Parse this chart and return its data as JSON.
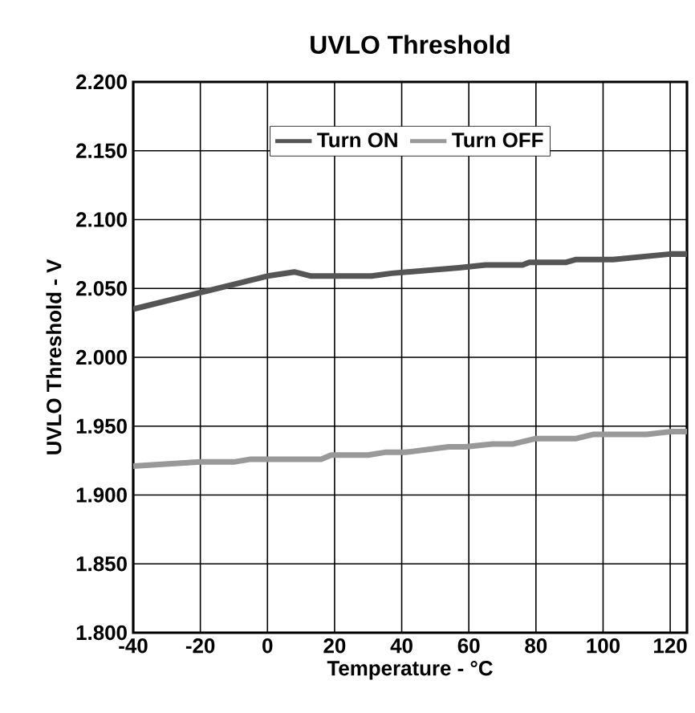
{
  "chart_data": {
    "type": "line",
    "title": "UVLO Threshold",
    "xlabel": "Temperature - °C",
    "ylabel": "UVLO Threshold - V",
    "xlim": [
      -40,
      125
    ],
    "xticks": [
      -40,
      -20,
      0,
      20,
      40,
      60,
      80,
      100,
      120
    ],
    "ylim": [
      1.8,
      2.2
    ],
    "yticks": [
      {
        "value": 1.8,
        "label": "1.800"
      },
      {
        "value": 1.85,
        "label": "1.850"
      },
      {
        "value": 1.9,
        "label": "1.900"
      },
      {
        "value": 1.95,
        "label": "1.950"
      },
      {
        "value": 2.0,
        "label": "2.000"
      },
      {
        "value": 2.05,
        "label": "2.050"
      },
      {
        "value": 2.1,
        "label": "2.100"
      },
      {
        "value": 2.15,
        "label": "2.150"
      },
      {
        "value": 2.2,
        "label": "2.200"
      }
    ],
    "grid": true,
    "legend": "top",
    "marker": "none",
    "line_style": "solid",
    "series": [
      {
        "name": "Turn ON",
        "color": "#555555",
        "x": [
          -40,
          -20,
          0,
          8,
          13,
          31,
          37,
          57,
          65,
          76,
          78,
          89,
          92,
          103,
          120,
          125
        ],
        "values": [
          2.035,
          2.047,
          2.059,
          2.062,
          2.059,
          2.059,
          2.061,
          2.065,
          2.067,
          2.067,
          2.069,
          2.069,
          2.071,
          2.071,
          2.075,
          2.075
        ]
      },
      {
        "name": "Turn OFF",
        "color": "#999999",
        "x": [
          -40,
          -20,
          -10,
          -5,
          16,
          19,
          30,
          35,
          41,
          54,
          59,
          67,
          73,
          80,
          92,
          97,
          113,
          120,
          125
        ],
        "values": [
          1.921,
          1.924,
          1.924,
          1.926,
          1.926,
          1.929,
          1.929,
          1.931,
          1.931,
          1.935,
          1.935,
          1.937,
          1.937,
          1.941,
          1.941,
          1.944,
          1.944,
          1.946,
          1.946
        ]
      }
    ]
  }
}
